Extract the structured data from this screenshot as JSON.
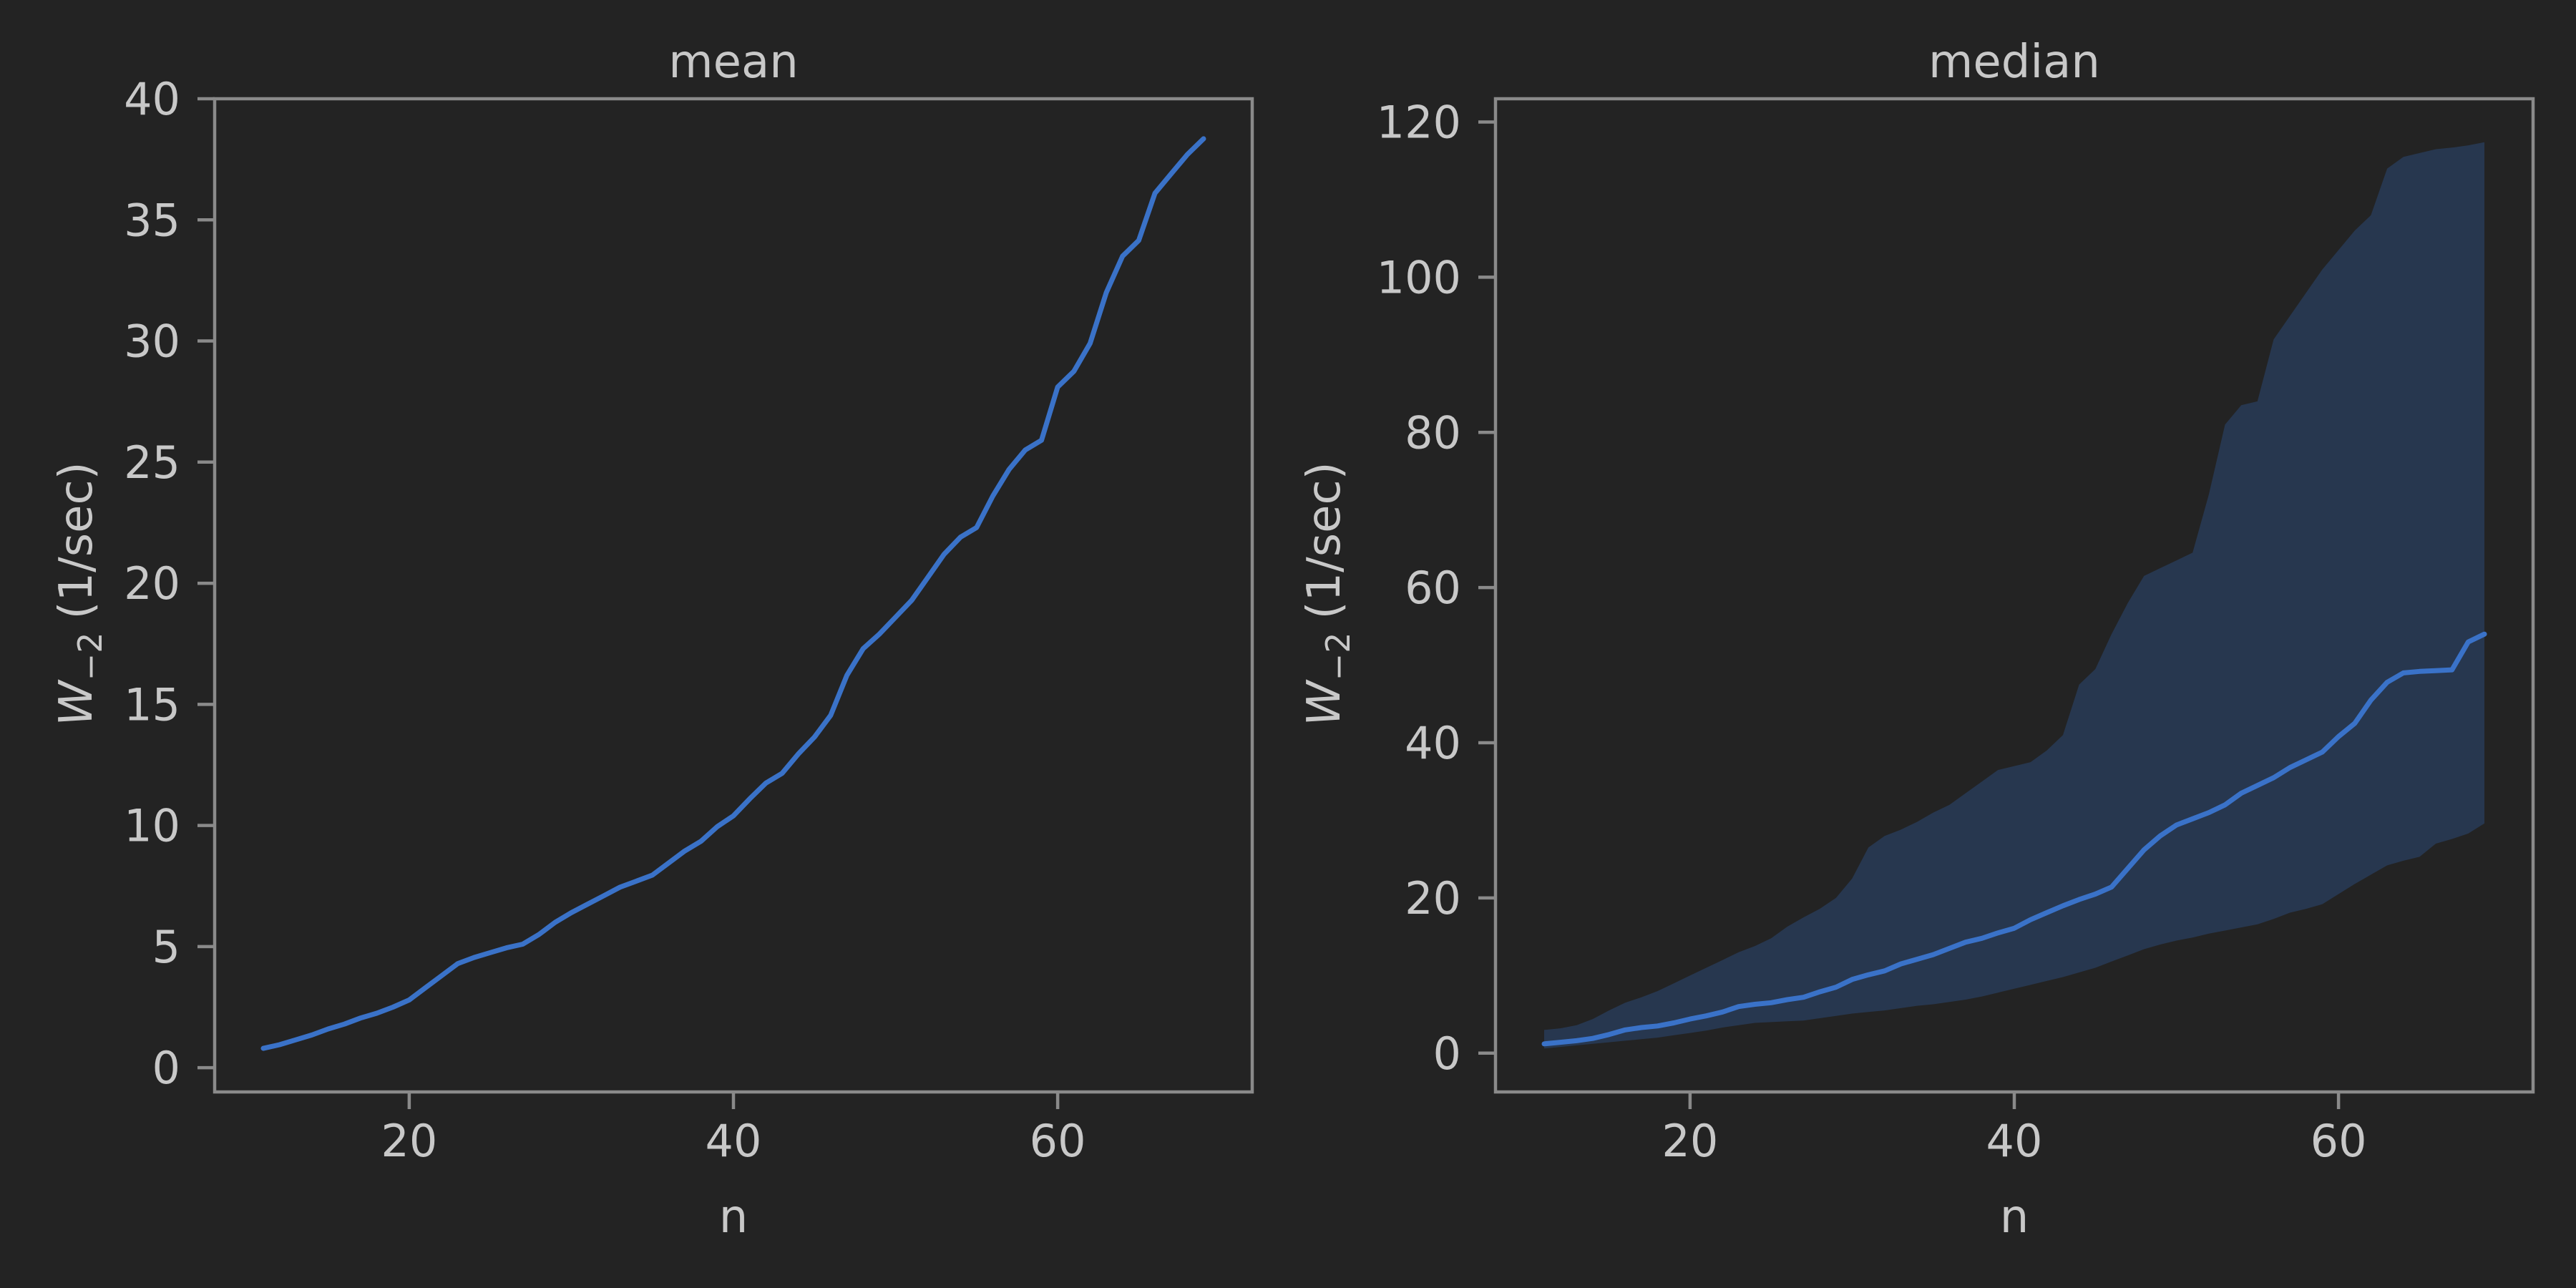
{
  "colors": {
    "background": "#232323",
    "line": "#3a72c8",
    "band": "#27374f",
    "text": "#c8c8c8",
    "frame": "#8a8a8a"
  },
  "chart_data": [
    {
      "type": "line",
      "title": "mean",
      "xlabel": "n",
      "ylabel": "W",
      "ylabel_sub": "−2",
      "ylabel_unit": "(1/sec)",
      "xlim": [
        8,
        72
      ],
      "ylim": [
        -1,
        40
      ],
      "xticks": [
        20,
        40,
        60
      ],
      "yticks": [
        0,
        5,
        10,
        15,
        20,
        25,
        30,
        35,
        40
      ],
      "grid": false,
      "x": [
        11,
        12,
        13,
        14,
        15,
        16,
        17,
        18,
        19,
        20,
        21,
        22,
        23,
        24,
        25,
        26,
        27,
        28,
        29,
        30,
        31,
        32,
        33,
        34,
        35,
        36,
        37,
        38,
        39,
        40,
        41,
        42,
        43,
        44,
        45,
        46,
        47,
        48,
        49,
        50,
        51,
        52,
        53,
        54,
        55,
        56,
        57,
        58,
        59,
        60,
        61,
        62,
        63,
        64,
        65,
        66,
        67,
        68,
        69
      ],
      "series": [
        {
          "values": [
            0.8,
            0.95,
            1.15,
            1.35,
            1.6,
            1.8,
            2.05,
            2.25,
            2.5,
            2.8,
            3.3,
            3.8,
            4.3,
            4.55,
            4.75,
            4.95,
            5.1,
            5.5,
            6.0,
            6.4,
            6.75,
            7.1,
            7.45,
            7.7,
            7.95,
            8.45,
            8.95,
            9.35,
            9.95,
            10.4,
            11.1,
            11.75,
            12.15,
            12.95,
            13.65,
            14.55,
            16.2,
            17.3,
            17.9,
            18.6,
            19.3,
            20.25,
            21.2,
            21.9,
            22.3,
            23.6,
            24.7,
            25.5,
            25.9,
            28.1,
            28.75,
            29.9,
            32.0,
            33.5,
            34.15,
            36.1,
            36.9,
            37.7,
            38.35
          ]
        }
      ]
    },
    {
      "type": "line",
      "title": "median",
      "xlabel": "n",
      "ylabel": "W",
      "ylabel_sub": "−2",
      "ylabel_unit": "(1/sec)",
      "xlim": [
        8,
        72
      ],
      "ylim": [
        -5,
        123
      ],
      "xticks": [
        20,
        40,
        60
      ],
      "yticks": [
        0,
        20,
        40,
        60,
        80,
        100,
        120
      ],
      "grid": false,
      "x": [
        11,
        12,
        13,
        14,
        15,
        16,
        17,
        18,
        19,
        20,
        21,
        22,
        23,
        24,
        25,
        26,
        27,
        28,
        29,
        30,
        31,
        32,
        33,
        34,
        35,
        36,
        37,
        38,
        39,
        40,
        41,
        42,
        43,
        44,
        45,
        46,
        47,
        48,
        49,
        50,
        51,
        52,
        53,
        54,
        55,
        56,
        57,
        58,
        59,
        60,
        61,
        62,
        63,
        64,
        65,
        66,
        67,
        68,
        69
      ],
      "series": [
        {
          "values": [
            1.2,
            1.4,
            1.6,
            1.9,
            2.4,
            3.0,
            3.3,
            3.5,
            3.9,
            4.4,
            4.8,
            5.3,
            6.0,
            6.3,
            6.5,
            6.9,
            7.2,
            7.9,
            8.5,
            9.5,
            10.1,
            10.6,
            11.5,
            12.1,
            12.7,
            13.5,
            14.3,
            14.8,
            15.5,
            16.1,
            17.2,
            18.1,
            19.0,
            19.8,
            20.5,
            21.4,
            23.8,
            26.2,
            28.0,
            29.4,
            30.2,
            31.0,
            32.0,
            33.5,
            34.5,
            35.5,
            36.8,
            37.8,
            38.8,
            40.8,
            42.5,
            45.5,
            47.8,
            49.0,
            49.2,
            49.3,
            49.4,
            53.0,
            54.0
          ]
        }
      ],
      "band": {
        "lower": [
          0.6,
          0.8,
          1.0,
          1.2,
          1.4,
          1.6,
          1.8,
          2.0,
          2.3,
          2.6,
          2.9,
          3.3,
          3.6,
          3.9,
          4.0,
          4.1,
          4.2,
          4.5,
          4.8,
          5.1,
          5.3,
          5.5,
          5.8,
          6.1,
          6.3,
          6.6,
          6.9,
          7.3,
          7.8,
          8.3,
          8.8,
          9.3,
          9.8,
          10.4,
          11.0,
          11.8,
          12.6,
          13.4,
          14.0,
          14.5,
          14.9,
          15.4,
          15.8,
          16.2,
          16.6,
          17.3,
          18.1,
          18.6,
          19.2,
          20.5,
          21.8,
          23.0,
          24.2,
          24.8,
          25.3,
          27.0,
          27.6,
          28.3,
          29.6
        ],
        "upper": [
          3.0,
          3.2,
          3.6,
          4.4,
          5.5,
          6.5,
          7.2,
          8.0,
          9.0,
          10.0,
          11.0,
          12.0,
          13.0,
          13.8,
          14.8,
          16.3,
          17.5,
          18.6,
          20.0,
          22.5,
          26.5,
          28.0,
          28.8,
          29.8,
          31.0,
          32.0,
          33.5,
          35.0,
          36.5,
          37.0,
          37.5,
          39.0,
          41.0,
          47.5,
          49.5,
          54.0,
          58.0,
          61.5,
          62.5,
          63.5,
          64.5,
          72.0,
          81.0,
          83.5,
          84.0,
          92.0,
          95.0,
          98.0,
          101.0,
          103.5,
          106.0,
          108.0,
          114.0,
          115.5,
          116.0,
          116.5,
          116.7,
          117.0,
          117.4
        ]
      }
    }
  ]
}
